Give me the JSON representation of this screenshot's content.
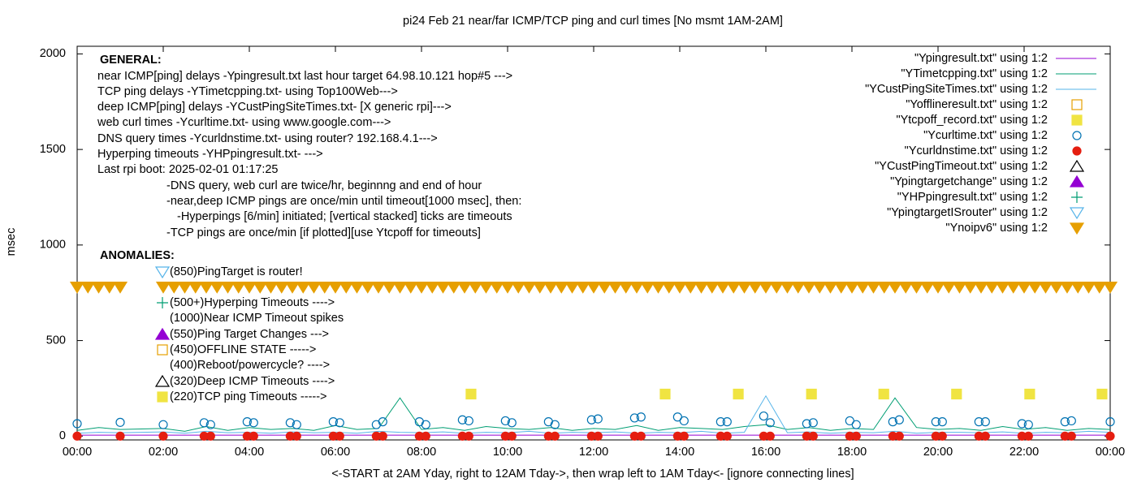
{
  "chart_data": {
    "type": "scatter",
    "title": "pi24 Feb 21  near/far ICMP/TCP ping and curl times [No msmt 1AM-2AM]",
    "xlabel": "<-START at 2AM Yday, right to 12AM Tday->, then wrap left to 1AM Tday<- [ignore connecting lines]",
    "ylabel": "msec",
    "xlim": [
      0,
      24
    ],
    "ylim": [
      -20,
      2040
    ],
    "xticks": [
      {
        "value": 0,
        "label": "00:00"
      },
      {
        "value": 2,
        "label": "02:00"
      },
      {
        "value": 4,
        "label": "04:00"
      },
      {
        "value": 6,
        "label": "06:00"
      },
      {
        "value": 8,
        "label": "08:00"
      },
      {
        "value": 10,
        "label": "10:00"
      },
      {
        "value": 12,
        "label": "12:00"
      },
      {
        "value": 14,
        "label": "14:00"
      },
      {
        "value": 16,
        "label": "16:00"
      },
      {
        "value": 18,
        "label": "18:00"
      },
      {
        "value": 20,
        "label": "20:00"
      },
      {
        "value": 22,
        "label": "22:00"
      },
      {
        "value": 24,
        "label": "00:00"
      }
    ],
    "yticks": [
      0,
      500,
      1000,
      1500,
      2000
    ],
    "annotations": [
      "GENERAL:",
      "near ICMP[ping] delays -Ypingresult.txt last hour target 64.98.10.121 hop#5 --->",
      "TCP ping delays -YTimetcpping.txt- using Top100Web--->",
      "deep ICMP[ping] delays -YCustPingSiteTimes.txt- [X generic rpi]--->",
      "web curl times -Ycurltime.txt- using www.google.com--->",
      "DNS query times -Ycurldnstime.txt- using router? 192.168.4.1--->",
      "Hyperping timeouts -YHPpingresult.txt- --->",
      "Last rpi boot: 2025-02-01 01:17:25",
      "-DNS query, web curl are twice/hr, beginnng and end of hour",
      "-near,deep ICMP pings are once/min until timeout[1000 msec], then:",
      "-Hyperpings [6/min] initiated; [vertical stacked] ticks are timeouts",
      "-TCP pings are once/min [if plotted][use Ytcpoff for timeouts]",
      "ANOMALIES:",
      "(850)PingTarget is router!",
      "(500+)Hyperping Timeouts ---->",
      "(1000)Near ICMP Timeout spikes",
      "(550)Ping Target Changes --->",
      "(450)OFFLINE STATE ----->",
      "(400)Reboot/powercycle? ---->",
      "(320)Deep ICMP Timeouts ---->",
      "(220)TCP ping Timeouts ----->"
    ],
    "series": [
      {
        "name": "\"Ypingresult.txt\" using 1:2",
        "color": "#9400d3",
        "marker": "line",
        "x": [
          0,
          1,
          2,
          4,
          6,
          8,
          10,
          12,
          14,
          16,
          18,
          20,
          22,
          24
        ],
        "values": [
          5,
          5,
          5,
          5,
          5,
          5,
          5,
          5,
          5,
          5,
          5,
          5,
          5,
          5
        ]
      },
      {
        "name": "\"YTimetcpping.txt\" using 1:2",
        "color": "#009e73",
        "marker": "line",
        "x": [
          0,
          0.5,
          1,
          2,
          2.5,
          3,
          3.5,
          4,
          4.5,
          5,
          5.5,
          6,
          6.5,
          7,
          7.5,
          8,
          8.5,
          9,
          9.5,
          10,
          10.5,
          11,
          11.5,
          12,
          12.5,
          13,
          13.5,
          14,
          14.5,
          15,
          15.5,
          16,
          16.5,
          17,
          17.5,
          18,
          18.5,
          19,
          19.5,
          20,
          20.5,
          21,
          21.5,
          22,
          22.5,
          23,
          23.5,
          24
        ],
        "values": [
          30,
          45,
          35,
          40,
          25,
          50,
          30,
          45,
          35,
          40,
          30,
          55,
          35,
          40,
          200,
          35,
          45,
          30,
          50,
          40,
          35,
          45,
          30,
          40,
          35,
          55,
          30,
          45,
          40,
          35,
          50,
          60,
          35,
          45,
          30,
          40,
          35,
          200,
          45,
          35,
          40,
          30,
          50,
          35,
          45,
          30,
          40,
          35
        ]
      },
      {
        "name": "\"YCustPingSiteTimes.txt\" using 1:2",
        "color": "#56b4e9",
        "marker": "line",
        "x": [
          0,
          0.5,
          1,
          2,
          2.5,
          3,
          3.5,
          4,
          4.5,
          5,
          5.5,
          6,
          6.5,
          7,
          7.5,
          8,
          8.5,
          9,
          9.5,
          10,
          10.5,
          11,
          11.5,
          12,
          12.5,
          13,
          13.5,
          14,
          14.5,
          15,
          15.5,
          16,
          16.5,
          17,
          17.5,
          18,
          18.5,
          19,
          19.5,
          20,
          20.5,
          21,
          21.5,
          22,
          22.5,
          23,
          23.5,
          24
        ],
        "values": [
          15,
          20,
          18,
          22,
          15,
          25,
          18,
          20,
          15,
          22,
          18,
          20,
          15,
          25,
          20,
          18,
          22,
          15,
          20,
          18,
          25,
          15,
          20,
          18,
          22,
          15,
          20,
          18,
          25,
          15,
          20,
          210,
          18,
          22,
          15,
          20,
          18,
          25,
          15,
          20,
          20,
          18,
          22,
          15,
          20,
          18,
          25,
          20
        ]
      },
      {
        "name": "\"Yofflineresult.txt\" using 1:2",
        "color": "#e69f00",
        "marker": "square-open",
        "x": [],
        "values": []
      },
      {
        "name": "\"Ytcpoff_record.txt\" using 1:2",
        "color": "#f0e442",
        "marker": "square",
        "x": [
          9.15,
          13.66,
          15.36,
          17.06,
          18.74,
          20.43,
          22.13,
          23.81
        ],
        "values": [
          220,
          220,
          220,
          220,
          220,
          220,
          220,
          220
        ]
      },
      {
        "name": "\"Ycurltime.txt\" using 1:2",
        "color": "#0072b2",
        "marker": "circle-open",
        "x": [
          0,
          1,
          2,
          2.95,
          3.1,
          3.95,
          4.1,
          4.95,
          5.1,
          5.95,
          6.1,
          6.95,
          7.1,
          7.95,
          8.1,
          8.95,
          9.1,
          9.95,
          10.1,
          10.95,
          11.1,
          11.95,
          12.1,
          12.95,
          13.1,
          13.95,
          14.1,
          14.95,
          15.1,
          15.95,
          16.1,
          16.95,
          17.1,
          17.95,
          18.1,
          18.95,
          19.1,
          19.95,
          20.1,
          20.95,
          21.1,
          21.95,
          22.1,
          22.95,
          23.1,
          24
        ],
        "values": [
          65,
          72,
          60,
          70,
          60,
          75,
          70,
          70,
          60,
          75,
          70,
          60,
          75,
          75,
          60,
          85,
          80,
          80,
          70,
          75,
          60,
          85,
          90,
          95,
          100,
          100,
          80,
          75,
          75,
          105,
          70,
          65,
          70,
          80,
          60,
          75,
          85,
          75,
          75,
          75,
          75,
          65,
          60,
          75,
          80,
          75
        ]
      },
      {
        "name": "\"Ycurldnstime.txt\" using 1:2",
        "color": "#e51e10",
        "marker": "circle",
        "x": [
          0,
          1,
          2,
          2.95,
          3.1,
          3.95,
          4.1,
          4.95,
          5.1,
          5.95,
          6.1,
          6.95,
          7.1,
          7.95,
          8.1,
          8.95,
          9.1,
          9.95,
          10.1,
          10.95,
          11.1,
          11.95,
          12.1,
          12.95,
          13.1,
          13.95,
          14.1,
          14.95,
          15.1,
          15.95,
          16.1,
          16.95,
          17.1,
          17.95,
          18.1,
          18.95,
          19.1,
          19.95,
          20.1,
          20.95,
          21.1,
          21.95,
          22.1,
          22.95,
          23.1,
          24
        ],
        "values": [
          0,
          0,
          0,
          0,
          0,
          0,
          0,
          0,
          0,
          0,
          0,
          0,
          0,
          0,
          0,
          0,
          0,
          0,
          0,
          0,
          0,
          0,
          0,
          0,
          0,
          0,
          0,
          0,
          0,
          0,
          0,
          0,
          0,
          0,
          0,
          0,
          0,
          0,
          0,
          0,
          0,
          0,
          0,
          0,
          0,
          0
        ]
      },
      {
        "name": "\"YCustPingTimeout.txt\" using 1:2",
        "color": "#000000",
        "marker": "triangle-open",
        "x": [],
        "values": []
      },
      {
        "name": "\"Ypingtargetchange\" using 1:2",
        "color": "#9400d3",
        "marker": "triangle",
        "x": [],
        "values": []
      },
      {
        "name": "\"YHPpingresult.txt\" using 1:2",
        "color": "#009e73",
        "marker": "plus",
        "x": [],
        "values": []
      },
      {
        "name": "\"YpingtargetISrouter\" using 1:2",
        "color": "#56b4e9",
        "marker": "down-open",
        "x": [],
        "values": []
      },
      {
        "name": "\"Ynoipv6\" using 1:2",
        "color": "#e69f00",
        "marker": "down",
        "x": [
          0,
          0.25,
          0.5,
          0.75,
          1,
          2,
          2.25,
          2.5,
          2.75,
          3,
          3.25,
          3.5,
          3.75,
          4,
          4.25,
          4.5,
          4.75,
          5,
          5.25,
          5.5,
          5.75,
          6,
          6.25,
          6.5,
          6.75,
          7,
          7.25,
          7.5,
          7.75,
          8,
          8.25,
          8.5,
          8.75,
          9,
          9.25,
          9.5,
          9.75,
          10,
          10.25,
          10.5,
          10.75,
          11,
          11.25,
          11.5,
          11.75,
          12,
          12.25,
          12.5,
          12.75,
          13,
          13.25,
          13.5,
          13.75,
          14,
          14.25,
          14.5,
          14.75,
          15,
          15.25,
          15.5,
          15.75,
          16,
          16.25,
          16.5,
          16.75,
          17,
          17.25,
          17.5,
          17.75,
          18,
          18.25,
          18.5,
          18.75,
          19,
          19.25,
          19.5,
          19.75,
          20,
          20.25,
          20.5,
          20.75,
          21,
          21.25,
          21.5,
          21.75,
          22,
          22.25,
          22.5,
          22.75,
          23,
          23.25,
          23.5,
          23.75,
          24
        ],
        "values": [
          780,
          780,
          780,
          780,
          780,
          780,
          780,
          780,
          780,
          780,
          780,
          780,
          780,
          780,
          780,
          780,
          780,
          780,
          780,
          780,
          780,
          780,
          780,
          780,
          780,
          780,
          780,
          780,
          780,
          780,
          780,
          780,
          780,
          780,
          780,
          780,
          780,
          780,
          780,
          780,
          780,
          780,
          780,
          780,
          780,
          780,
          780,
          780,
          780,
          780,
          780,
          780,
          780,
          780,
          780,
          780,
          780,
          780,
          780,
          780,
          780,
          780,
          780,
          780,
          780,
          780,
          780,
          780,
          780,
          780,
          780,
          780,
          780,
          780,
          780,
          780,
          780,
          780,
          780,
          780,
          780,
          780,
          780,
          780,
          780,
          780,
          780,
          780,
          780,
          780,
          780,
          780,
          780,
          780
        ]
      }
    ]
  }
}
